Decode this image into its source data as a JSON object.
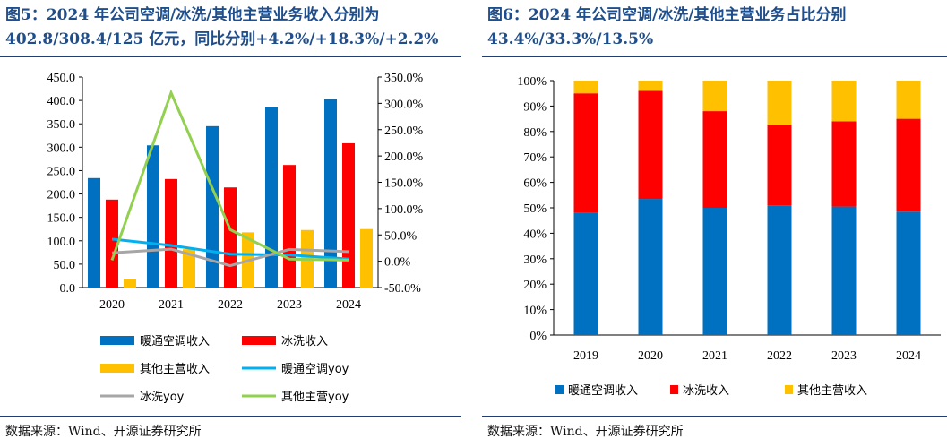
{
  "left": {
    "title": "图5：2024 年公司空调/冰洗/其他主营业务收入分别为402.8/308.4/125 亿元，同比分别+4.2%/+18.3%/+2.2%",
    "source": "数据来源：Wind、开源证券研究所"
  },
  "right": {
    "title": "图6：2024 年公司空调/冰洗/其他主营业务占比分别43.4%/33.3%/13.5%",
    "source": "数据来源：Wind、开源证券研究所"
  },
  "chart_data": [
    {
      "type": "bar",
      "combo": "bar+line",
      "title": "2024年公司空调/冰洗/其他主营业务收入",
      "categories": [
        "2020",
        "2021",
        "2022",
        "2023",
        "2024"
      ],
      "series": [
        {
          "name": "暖通空调收入",
          "type": "bar",
          "axis": "left",
          "color": "#0070c0",
          "values": [
            234,
            304,
            345,
            386,
            402.8
          ]
        },
        {
          "name": "冰洗收入",
          "type": "bar",
          "axis": "left",
          "color": "#ff0000",
          "values": [
            188,
            232,
            214,
            262,
            308.4
          ]
        },
        {
          "name": "其他主营收入",
          "type": "bar",
          "axis": "left",
          "color": "#ffc000",
          "values": [
            18,
            82,
            118,
            123,
            125
          ]
        },
        {
          "name": "暖通空调yoy",
          "type": "line",
          "axis": "right",
          "color": "#00b0f0",
          "values": [
            0.42,
            0.3,
            0.135,
            0.12,
            0.042
          ]
        },
        {
          "name": "冰洗yoy",
          "type": "line",
          "axis": "right",
          "color": "#a6a6a6",
          "values": [
            0.16,
            0.23,
            -0.085,
            0.225,
            0.183
          ]
        },
        {
          "name": "其他主营yoy",
          "type": "line",
          "axis": "right",
          "color": "#92d050",
          "values": [
            0.02,
            3.2,
            0.6,
            0.04,
            0.022
          ]
        }
      ],
      "y_left": {
        "min": 0,
        "max": 450,
        "step": 50,
        "ticks": [
          "0.0",
          "50.0",
          "100.0",
          "150.0",
          "200.0",
          "250.0",
          "300.0",
          "350.0",
          "400.0",
          "450.0"
        ]
      },
      "y_right": {
        "min": -0.5,
        "max": 3.5,
        "step": 0.5,
        "ticks": [
          "-50.0%",
          "0.0%",
          "50.0%",
          "100.0%",
          "150.0%",
          "200.0%",
          "250.0%",
          "300.0%",
          "350.0%"
        ]
      },
      "grid": false,
      "legend_position": "bottom"
    },
    {
      "type": "bar",
      "stacked": true,
      "percent": true,
      "title": "2024年公司空调/冰洗/其他主营业务占比",
      "categories": [
        "2019",
        "2020",
        "2021",
        "2022",
        "2023",
        "2024"
      ],
      "series": [
        {
          "name": "暖通空调收入",
          "color": "#0070c0",
          "values": [
            0.48,
            0.535,
            0.5,
            0.51,
            0.505,
            0.485
          ]
        },
        {
          "name": "冰洗收入",
          "color": "#ff0000",
          "values": [
            0.47,
            0.425,
            0.38,
            0.315,
            0.335,
            0.365
          ]
        },
        {
          "name": "其他主营收入",
          "color": "#ffc000",
          "values": [
            0.05,
            0.04,
            0.12,
            0.175,
            0.16,
            0.15
          ]
        }
      ],
      "y": {
        "min": 0,
        "max": 1,
        "ticks": [
          "0%",
          "10%",
          "20%",
          "30%",
          "40%",
          "50%",
          "60%",
          "70%",
          "80%",
          "90%",
          "100%"
        ]
      },
      "grid": false,
      "legend_position": "bottom"
    }
  ]
}
